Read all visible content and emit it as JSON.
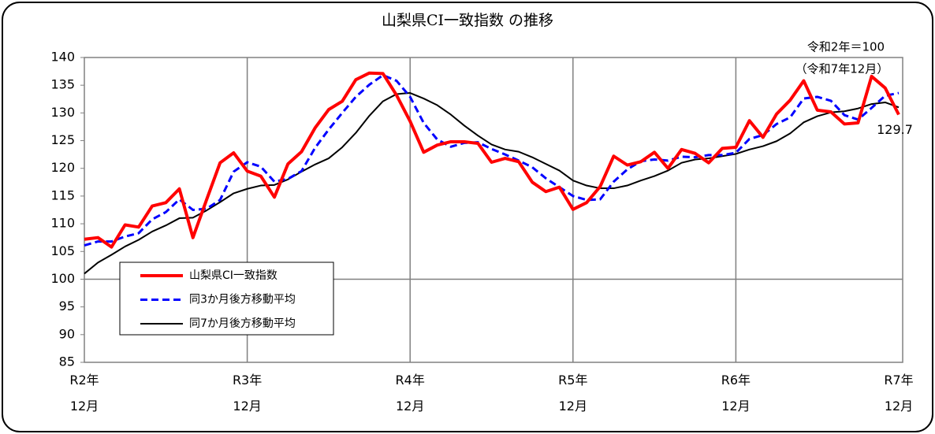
{
  "chart_data": {
    "type": "line",
    "title": "山梨県CI一致指数 の推移",
    "annotations": [
      "令和2年＝100",
      "（令和7年12月）"
    ],
    "categories": [
      "R2年\n12月",
      null,
      null,
      null,
      null,
      null,
      null,
      null,
      null,
      null,
      null,
      null,
      "R3年\n12月",
      null,
      null,
      null,
      null,
      null,
      null,
      null,
      null,
      null,
      null,
      null,
      "R4年\n12月",
      null,
      null,
      null,
      null,
      null,
      null,
      null,
      null,
      null,
      null,
      null,
      "R5年\n12月",
      null,
      null,
      null,
      null,
      null,
      null,
      null,
      null,
      null,
      null,
      null,
      "R6年\n12月",
      null,
      null,
      null,
      null,
      null,
      null,
      null,
      null,
      null,
      null,
      null,
      "R7年\n12月"
    ],
    "series": [
      {
        "name": "山梨県CI一致指数",
        "color": "#ff0000",
        "dash": false,
        "width": 4,
        "values": [
          107.2,
          107.5,
          105.8,
          109.8,
          109.4,
          113.2,
          113.8,
          116.3,
          107.5,
          114.3,
          121.0,
          122.8,
          119.5,
          118.6,
          114.8,
          120.8,
          123.0,
          127.3,
          130.6,
          132.1,
          136.0,
          137.2,
          137.1,
          133.2,
          128.5,
          122.9,
          124.2,
          124.8,
          124.8,
          124.5,
          121.1,
          121.8,
          121.2,
          117.5,
          115.8,
          116.6,
          112.6,
          113.8,
          116.7,
          122.2,
          120.6,
          121.2,
          122.9,
          120.0,
          123.4,
          122.7,
          121.0,
          123.6,
          123.8,
          128.6,
          125.6,
          129.8,
          132.3,
          135.8,
          130.5,
          130.2,
          128.0,
          128.2,
          136.6,
          134.5,
          129.7
        ]
      },
      {
        "name": "同3か月後方移動平均",
        "color": "#0000ff",
        "dash": true,
        "width": 3,
        "values": [
          106.1,
          106.8,
          106.8,
          107.7,
          108.3,
          110.8,
          112.1,
          114.4,
          112.5,
          112.7,
          114.3,
          119.4,
          121.1,
          120.3,
          117.6,
          118.1,
          119.5,
          123.7,
          127.0,
          130.0,
          132.9,
          135.1,
          136.8,
          135.8,
          132.9,
          128.2,
          125.2,
          123.9,
          124.6,
          124.7,
          123.5,
          122.5,
          121.4,
          120.2,
          118.2,
          116.6,
          115.0,
          114.3,
          114.4,
          117.6,
          119.8,
          121.3,
          121.6,
          121.4,
          122.1,
          122.0,
          122.4,
          122.4,
          122.8,
          125.3,
          126.0,
          128.0,
          129.2,
          132.6,
          132.9,
          132.2,
          129.6,
          128.8,
          130.9,
          133.1,
          133.6
        ]
      },
      {
        "name": "同7か月後方移動平均",
        "color": "#000000",
        "dash": false,
        "width": 2,
        "values": [
          101.0,
          103.0,
          104.4,
          105.9,
          107.1,
          108.6,
          109.7,
          111.0,
          111.1,
          112.4,
          113.9,
          115.5,
          116.3,
          116.9,
          117.0,
          118.0,
          119.4,
          120.7,
          121.8,
          123.8,
          126.4,
          129.5,
          132.1,
          133.4,
          133.6,
          132.6,
          131.4,
          129.7,
          127.7,
          125.9,
          124.3,
          123.4,
          123.0,
          122.0,
          120.8,
          119.6,
          117.8,
          116.9,
          116.4,
          116.4,
          116.9,
          117.8,
          118.6,
          119.6,
          121.0,
          121.6,
          121.8,
          122.2,
          122.6,
          123.4,
          124.0,
          124.9,
          126.3,
          128.3,
          129.4,
          130.1,
          130.3,
          130.8,
          131.6,
          131.9,
          131.0
        ]
      }
    ],
    "ylim": [
      85,
      140
    ],
    "yticks": [
      85,
      90,
      95,
      100,
      105,
      110,
      115,
      120,
      125,
      130,
      135,
      140
    ],
    "reference_line": 100
  }
}
